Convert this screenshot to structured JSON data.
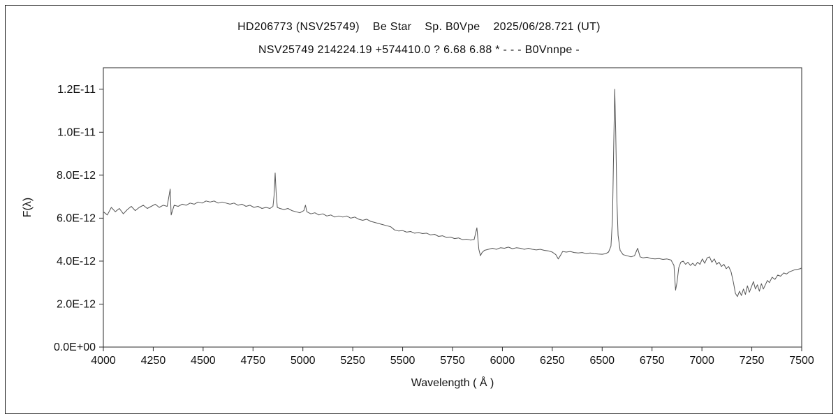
{
  "chart_data": {
    "type": "line",
    "title": "HD206773 (NSV25749)    Be Star    Sp. B0Vpe    2025/06/28.721 (UT)",
    "subtitle": "NSV25749 214224.19 +574410.0 ? 6.68 6.88 * - - - B0Vnnpe -",
    "xlabel": "Wavelength ( Å )",
    "ylabel": "F(λ)",
    "xlim": [
      4000,
      7500
    ],
    "ylim_1e12": [
      0,
      13
    ],
    "flux_values_scaled_by": "1e-12",
    "x_ticks": [
      4000,
      4250,
      4500,
      4750,
      5000,
      5250,
      5500,
      5750,
      6000,
      6250,
      6500,
      6750,
      7000,
      7250,
      7500
    ],
    "y_ticks_1e12": [
      0,
      2,
      4,
      6,
      8,
      10,
      12
    ],
    "y_tick_labels": [
      "0.0E+00",
      "2.0E-12",
      "4.0E-12",
      "6.0E-12",
      "8.0E-12",
      "1.0E-11",
      "1.2E-11"
    ],
    "grid": false,
    "legend": "none",
    "line_color": "#555555",
    "series_name": "flux-spectrum",
    "features": {
      "H-beta_emission_peak": [
        4861,
        8.1
      ],
      "H-alpha_emission_peak": [
        6563,
        12.0
      ],
      "telluric_O2_B_band_dip": [
        6868,
        2.65
      ],
      "telluric_H2O_band_region": [
        7150,
        7340
      ],
      "NaD_dip": [
        5890,
        4.25
      ]
    },
    "points": [
      [
        4000,
        6.3
      ],
      [
        4020,
        6.15
      ],
      [
        4040,
        6.5
      ],
      [
        4060,
        6.3
      ],
      [
        4080,
        6.45
      ],
      [
        4100,
        6.2
      ],
      [
        4120,
        6.4
      ],
      [
        4140,
        6.55
      ],
      [
        4160,
        6.35
      ],
      [
        4180,
        6.5
      ],
      [
        4200,
        6.6
      ],
      [
        4220,
        6.45
      ],
      [
        4240,
        6.55
      ],
      [
        4260,
        6.65
      ],
      [
        4280,
        6.5
      ],
      [
        4300,
        6.6
      ],
      [
        4320,
        6.55
      ],
      [
        4335,
        7.35
      ],
      [
        4340,
        6.15
      ],
      [
        4355,
        6.6
      ],
      [
        4375,
        6.55
      ],
      [
        4395,
        6.65
      ],
      [
        4415,
        6.6
      ],
      [
        4435,
        6.7
      ],
      [
        4455,
        6.65
      ],
      [
        4475,
        6.75
      ],
      [
        4495,
        6.7
      ],
      [
        4515,
        6.8
      ],
      [
        4535,
        6.75
      ],
      [
        4555,
        6.8
      ],
      [
        4575,
        6.7
      ],
      [
        4595,
        6.75
      ],
      [
        4615,
        6.7
      ],
      [
        4635,
        6.65
      ],
      [
        4655,
        6.7
      ],
      [
        4675,
        6.6
      ],
      [
        4695,
        6.65
      ],
      [
        4715,
        6.55
      ],
      [
        4735,
        6.6
      ],
      [
        4755,
        6.5
      ],
      [
        4775,
        6.55
      ],
      [
        4795,
        6.45
      ],
      [
        4815,
        6.5
      ],
      [
        4835,
        6.45
      ],
      [
        4850,
        6.55
      ],
      [
        4856,
        7.1
      ],
      [
        4861,
        8.1
      ],
      [
        4866,
        7.2
      ],
      [
        4872,
        6.5
      ],
      [
        4885,
        6.45
      ],
      [
        4905,
        6.4
      ],
      [
        4925,
        6.45
      ],
      [
        4945,
        6.35
      ],
      [
        4965,
        6.3
      ],
      [
        4985,
        6.25
      ],
      [
        5005,
        6.35
      ],
      [
        5013,
        6.6
      ],
      [
        5020,
        6.3
      ],
      [
        5040,
        6.2
      ],
      [
        5060,
        6.25
      ],
      [
        5080,
        6.15
      ],
      [
        5100,
        6.2
      ],
      [
        5120,
        6.1
      ],
      [
        5140,
        6.15
      ],
      [
        5160,
        6.05
      ],
      [
        5180,
        6.1
      ],
      [
        5200,
        6.05
      ],
      [
        5220,
        6.1
      ],
      [
        5240,
        6.0
      ],
      [
        5260,
        6.05
      ],
      [
        5280,
        5.95
      ],
      [
        5300,
        5.9
      ],
      [
        5320,
        5.95
      ],
      [
        5340,
        5.85
      ],
      [
        5360,
        5.8
      ],
      [
        5380,
        5.75
      ],
      [
        5400,
        5.7
      ],
      [
        5420,
        5.65
      ],
      [
        5440,
        5.6
      ],
      [
        5460,
        5.45
      ],
      [
        5480,
        5.4
      ],
      [
        5500,
        5.42
      ],
      [
        5520,
        5.35
      ],
      [
        5540,
        5.38
      ],
      [
        5560,
        5.3
      ],
      [
        5580,
        5.33
      ],
      [
        5600,
        5.28
      ],
      [
        5620,
        5.3
      ],
      [
        5640,
        5.22
      ],
      [
        5660,
        5.25
      ],
      [
        5680,
        5.15
      ],
      [
        5700,
        5.18
      ],
      [
        5720,
        5.1
      ],
      [
        5740,
        5.12
      ],
      [
        5760,
        5.05
      ],
      [
        5780,
        5.08
      ],
      [
        5800,
        5.0
      ],
      [
        5820,
        5.02
      ],
      [
        5840,
        4.98
      ],
      [
        5858,
        5.0
      ],
      [
        5872,
        5.55
      ],
      [
        5882,
        4.55
      ],
      [
        5890,
        4.25
      ],
      [
        5898,
        4.4
      ],
      [
        5910,
        4.5
      ],
      [
        5930,
        4.55
      ],
      [
        5950,
        4.6
      ],
      [
        5970,
        4.55
      ],
      [
        5990,
        4.62
      ],
      [
        6010,
        4.6
      ],
      [
        6030,
        4.65
      ],
      [
        6050,
        4.58
      ],
      [
        6070,
        4.62
      ],
      [
        6090,
        4.6
      ],
      [
        6110,
        4.55
      ],
      [
        6130,
        4.6
      ],
      [
        6150,
        4.55
      ],
      [
        6170,
        4.52
      ],
      [
        6190,
        4.55
      ],
      [
        6210,
        4.5
      ],
      [
        6230,
        4.48
      ],
      [
        6250,
        4.42
      ],
      [
        6268,
        4.3
      ],
      [
        6280,
        4.1
      ],
      [
        6290,
        4.25
      ],
      [
        6302,
        4.45
      ],
      [
        6320,
        4.42
      ],
      [
        6340,
        4.45
      ],
      [
        6360,
        4.4
      ],
      [
        6380,
        4.38
      ],
      [
        6400,
        4.4
      ],
      [
        6420,
        4.35
      ],
      [
        6440,
        4.38
      ],
      [
        6460,
        4.35
      ],
      [
        6480,
        4.33
      ],
      [
        6500,
        4.32
      ],
      [
        6518,
        4.35
      ],
      [
        6532,
        4.42
      ],
      [
        6544,
        4.7
      ],
      [
        6552,
        6.0
      ],
      [
        6558,
        9.5
      ],
      [
        6563,
        12.0
      ],
      [
        6568,
        10.0
      ],
      [
        6574,
        6.8
      ],
      [
        6580,
        5.2
      ],
      [
        6590,
        4.5
      ],
      [
        6605,
        4.3
      ],
      [
        6625,
        4.25
      ],
      [
        6645,
        4.2
      ],
      [
        6662,
        4.25
      ],
      [
        6678,
        4.6
      ],
      [
        6690,
        4.2
      ],
      [
        6705,
        4.15
      ],
      [
        6725,
        4.18
      ],
      [
        6745,
        4.12
      ],
      [
        6765,
        4.1
      ],
      [
        6785,
        4.12
      ],
      [
        6805,
        4.08
      ],
      [
        6825,
        4.1
      ],
      [
        6845,
        4.05
      ],
      [
        6860,
        3.8
      ],
      [
        6868,
        2.65
      ],
      [
        6875,
        3.0
      ],
      [
        6884,
        3.7
      ],
      [
        6894,
        3.95
      ],
      [
        6906,
        4.0
      ],
      [
        6918,
        3.85
      ],
      [
        6930,
        3.95
      ],
      [
        6942,
        3.8
      ],
      [
        6954,
        3.9
      ],
      [
        6966,
        3.78
      ],
      [
        6978,
        3.95
      ],
      [
        6990,
        3.85
      ],
      [
        7002,
        4.1
      ],
      [
        7014,
        3.9
      ],
      [
        7026,
        4.15
      ],
      [
        7038,
        4.2
      ],
      [
        7050,
        3.95
      ],
      [
        7062,
        4.1
      ],
      [
        7074,
        3.85
      ],
      [
        7086,
        3.95
      ],
      [
        7098,
        3.75
      ],
      [
        7110,
        3.85
      ],
      [
        7122,
        3.65
      ],
      [
        7134,
        3.75
      ],
      [
        7146,
        3.5
      ],
      [
        7158,
        3.0
      ],
      [
        7168,
        2.5
      ],
      [
        7178,
        2.35
      ],
      [
        7188,
        2.6
      ],
      [
        7198,
        2.4
      ],
      [
        7208,
        2.7
      ],
      [
        7218,
        2.45
      ],
      [
        7228,
        2.85
      ],
      [
        7238,
        2.55
      ],
      [
        7248,
        2.8
      ],
      [
        7258,
        3.05
      ],
      [
        7268,
        2.7
      ],
      [
        7278,
        2.9
      ],
      [
        7288,
        2.6
      ],
      [
        7298,
        2.95
      ],
      [
        7308,
        2.7
      ],
      [
        7318,
        2.9
      ],
      [
        7328,
        3.1
      ],
      [
        7338,
        3.0
      ],
      [
        7352,
        3.25
      ],
      [
        7366,
        3.15
      ],
      [
        7380,
        3.35
      ],
      [
        7394,
        3.3
      ],
      [
        7410,
        3.45
      ],
      [
        7424,
        3.4
      ],
      [
        7438,
        3.5
      ],
      [
        7452,
        3.55
      ],
      [
        7466,
        3.6
      ],
      [
        7480,
        3.62
      ],
      [
        7494,
        3.65
      ],
      [
        7500,
        3.7
      ]
    ]
  }
}
